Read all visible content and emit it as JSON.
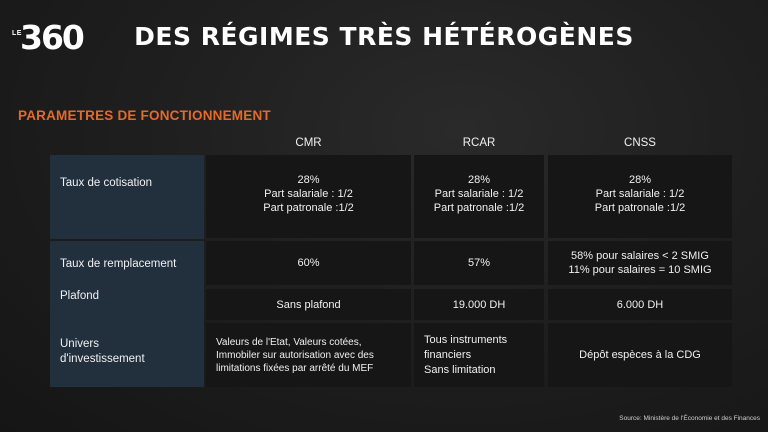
{
  "logo": {
    "prefix": "LE",
    "number": "360"
  },
  "title": "DES RÉGIMES TRÈS HÉTÉROGÈNES",
  "section_title": "PARAMETRES DE FONCTIONNEMENT",
  "columns": [
    "CMR",
    "RCAR",
    "CNSS"
  ],
  "rows": [
    {
      "label": "Taux de cotisation",
      "cells": [
        "28%\nPart salariale : 1/2\nPart patronale :1/2",
        "28%\nPart salariale : 1/2\nPart patronale :1/2",
        "28%\nPart salariale : 1/2\nPart patronale :1/2"
      ]
    },
    {
      "label": "Taux de remplacement",
      "cells": [
        "60%",
        "57%",
        "58% pour salaires < 2 SMIG\n11% pour salaires = 10 SMIG"
      ]
    },
    {
      "label": "Plafond",
      "cells": [
        "Sans plafond",
        "19.000 DH",
        "6.000 DH"
      ]
    },
    {
      "label": "Univers\nd'investissement",
      "cells": [
        "Valeurs de l'Etat, Valeurs cotées,\nImmobiler sur autorisation avec des\nlimitations fixées par arrêté du MEF",
        "Tous instruments\nfinanciers\nSans limitation",
        "Dépôt espèces à la CDG"
      ]
    }
  ],
  "source": "Source: Ministère de l'Économie et des Finances"
}
